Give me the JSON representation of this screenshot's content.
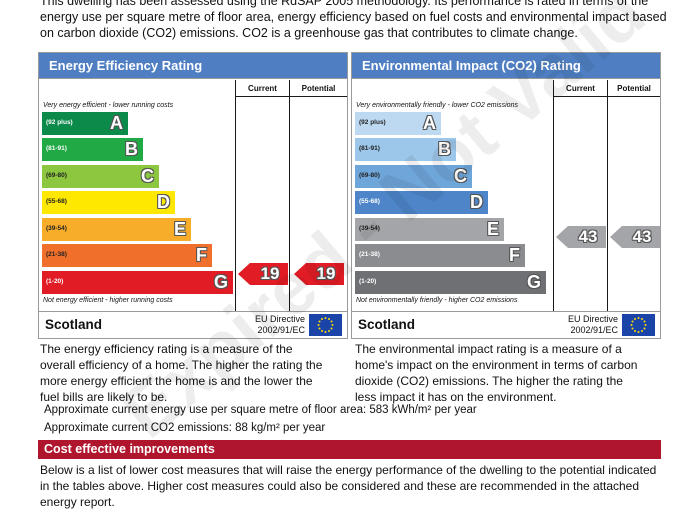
{
  "intro": "This dwelling has been assessed using the RdSAP 2005 methodology. Its performance is rated in terms of the energy use per square metre of floor area, energy efficiency based on fuel costs and environmental impact based on carbon dioxide (CO2) emissions. CO2 is a greenhouse gas that contributes to climate change.",
  "energy_efficiency": {
    "title": "Energy Efficiency Rating",
    "col_current": "Current",
    "col_potential": "Potential",
    "top_note": "Very energy efficient - lower running costs",
    "bottom_note": "Not energy efficient - higher running costs",
    "bands": [
      {
        "range": "(92 plus)",
        "letter": "A",
        "color": "#0c8a4a"
      },
      {
        "range": "(81-91)",
        "letter": "B",
        "color": "#21a946"
      },
      {
        "range": "(69-80)",
        "letter": "C",
        "color": "#8dc63f"
      },
      {
        "range": "(55-68)",
        "letter": "D",
        "color": "#ffe800"
      },
      {
        "range": "(39-54)",
        "letter": "E",
        "color": "#f7ac2a"
      },
      {
        "range": "(21-38)",
        "letter": "F",
        "color": "#f0702b"
      },
      {
        "range": "(1-20)",
        "letter": "G",
        "color": "#e21c25"
      }
    ],
    "current": "19",
    "potential": "19",
    "arrow_color": "#e21c25",
    "region": "Scotland",
    "eu_directive_1": "EU Directive",
    "eu_directive_2": "2002/91/EC",
    "description": "The energy efficiency rating is a measure of the overall efficiency of a home. The higher the rating the more energy efficient the home is and the lower the fuel bills are likely to be."
  },
  "environmental_impact": {
    "title": "Environmental Impact (CO2) Rating",
    "col_current": "Current",
    "col_potential": "Potential",
    "top_note": "Very environmentally friendly - lower CO2 emissions",
    "bottom_note": "Not environmentally friendly - higher CO2 emissions",
    "bands": [
      {
        "range": "(92 plus)",
        "letter": "A",
        "color": "#bcd9f1"
      },
      {
        "range": "(81-91)",
        "letter": "B",
        "color": "#9cc6ea"
      },
      {
        "range": "(69-80)",
        "letter": "C",
        "color": "#6fa6da"
      },
      {
        "range": "(55-68)",
        "letter": "D",
        "color": "#4d85c8"
      },
      {
        "range": "(39-54)",
        "letter": "E",
        "color": "#a3a5a8"
      },
      {
        "range": "(21-38)",
        "letter": "F",
        "color": "#8a8c8f"
      },
      {
        "range": "(1-20)",
        "letter": "G",
        "color": "#6e7073"
      }
    ],
    "current": "43",
    "potential": "43",
    "arrow_color": "#a3a5a8",
    "region": "Scotland",
    "eu_directive_1": "EU Directive",
    "eu_directive_2": "2002/91/EC",
    "description": "The environmental impact rating is a measure of a home's impact on the environment in terms of carbon dioxide (CO2) emissions. The higher the rating the less impact it has on the environment."
  },
  "energy_use_line": "Approximate current energy use per square metre of floor area: 583 kWh/m² per year",
  "co2_line": "Approximate current CO2 emissions: 88 kg/m² per year",
  "cost_title": "Cost effective improvements",
  "cost_text": "Below is a list of lower cost measures that will raise the energy performance of the dwelling to the potential indicated in the tables above. Higher cost measures could also be considered and these are recommended in the attached energy report.",
  "watermark": "Expired - Not Valid"
}
